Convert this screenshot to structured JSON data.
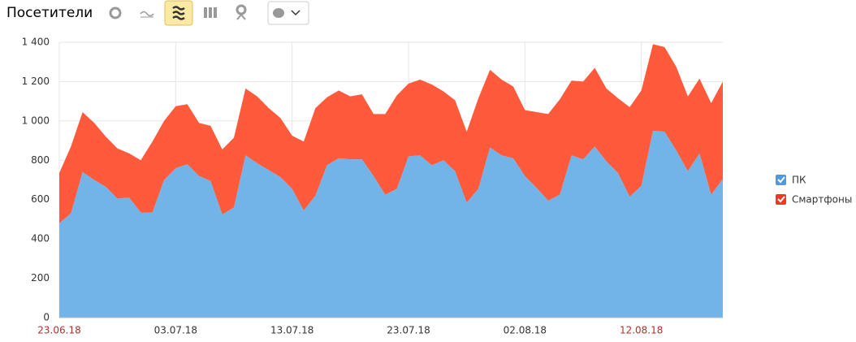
{
  "chart_data": {
    "type": "stacked_area",
    "title": "Посетители",
    "categories": [
      "23.06.18",
      null,
      null,
      null,
      null,
      null,
      null,
      null,
      null,
      null,
      "03.07.18",
      null,
      null,
      null,
      null,
      null,
      null,
      null,
      null,
      null,
      "13.07.18",
      null,
      null,
      null,
      null,
      null,
      null,
      null,
      null,
      null,
      "23.07.18",
      null,
      null,
      null,
      null,
      null,
      null,
      null,
      null,
      null,
      "02.08.18",
      null,
      null,
      null,
      null,
      null,
      null,
      null,
      null,
      null,
      "12.08.18",
      null,
      null,
      null,
      null,
      null,
      null,
      null
    ],
    "series": [
      {
        "name": "ПК",
        "color": "#73b4e8",
        "values": [
          480,
          530,
          740,
          700,
          665,
          605,
          610,
          535,
          535,
          700,
          760,
          780,
          720,
          695,
          525,
          560,
          825,
          785,
          750,
          715,
          655,
          545,
          620,
          775,
          810,
          805,
          805,
          720,
          625,
          655,
          820,
          825,
          775,
          800,
          745,
          585,
          655,
          865,
          825,
          810,
          720,
          660,
          595,
          625,
          825,
          805,
          870,
          795,
          735,
          615,
          670,
          950,
          945,
          850,
          745,
          835,
          625,
          705
        ]
      },
      {
        "name": "Смартфоны",
        "color": "#ff5a3c",
        "values": [
          255,
          340,
          305,
          290,
          255,
          255,
          225,
          265,
          360,
          300,
          315,
          305,
          270,
          280,
          330,
          355,
          340,
          340,
          315,
          300,
          270,
          350,
          445,
          345,
          345,
          320,
          330,
          315,
          410,
          475,
          370,
          385,
          410,
          350,
          360,
          360,
          460,
          395,
          385,
          365,
          335,
          385,
          440,
          485,
          380,
          395,
          400,
          370,
          380,
          455,
          485,
          440,
          430,
          425,
          380,
          380,
          465,
          495
        ]
      }
    ],
    "ylim": [
      0,
      1400
    ],
    "yticks": [
      0,
      200,
      400,
      600,
      800,
      {
        "value": 1000,
        "label": "1 000"
      },
      {
        "value": 1200,
        "label": "1 200"
      },
      {
        "value": 1400,
        "label": "1 400"
      }
    ],
    "grid": true,
    "legend": "right",
    "weekend_label_color": "#b5302a"
  }
}
